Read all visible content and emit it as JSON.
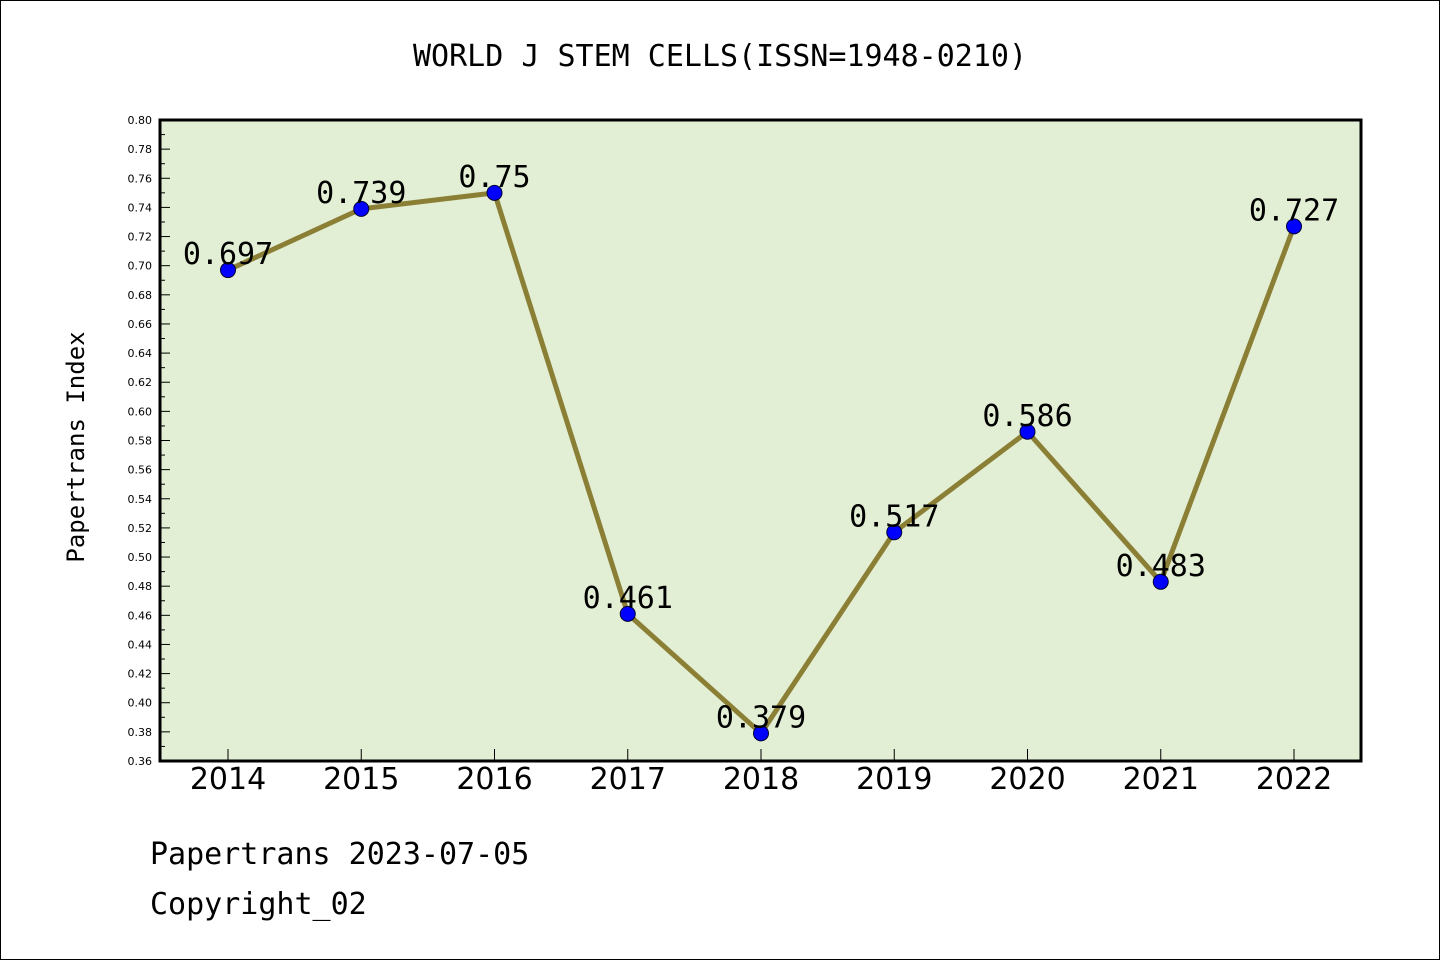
{
  "footer": {
    "line1": "Papertrans 2023-07-05",
    "line2": "Copyright_02"
  },
  "chart_data": {
    "type": "line",
    "title": "WORLD J STEM CELLS(ISSN=1948-0210)",
    "xlabel": "",
    "ylabel": "Papertrans Index",
    "categories": [
      "2014",
      "2015",
      "2016",
      "2017",
      "2018",
      "2019",
      "2020",
      "2021",
      "2022"
    ],
    "series": [
      {
        "values": [
          0.697,
          0.739,
          0.75,
          0.461,
          0.379,
          0.517,
          0.586,
          0.483,
          0.727
        ],
        "labels": [
          "0.697",
          "0.739",
          "0.75",
          "0.461",
          "0.379",
          "0.517",
          "0.586",
          "0.483",
          "0.727"
        ]
      }
    ],
    "ylim": [
      0.36,
      0.8
    ],
    "yticks": [
      "0.36",
      "0.38",
      "0.40",
      "0.42",
      "0.44",
      "0.46",
      "0.48",
      "0.50",
      "0.52",
      "0.54",
      "0.56",
      "0.58",
      "0.60",
      "0.62",
      "0.64",
      "0.66",
      "0.68",
      "0.70",
      "0.72",
      "0.74",
      "0.76",
      "0.78",
      "0.80"
    ],
    "grid": false,
    "legend": "none",
    "colors": {
      "plot_background": "#e2efd4",
      "line": "#8b7f35",
      "marker": "#0000ff"
    }
  }
}
